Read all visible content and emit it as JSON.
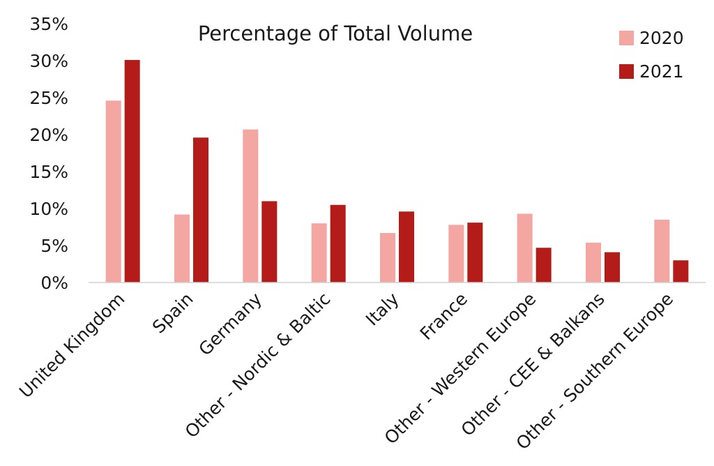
{
  "chart_data": {
    "type": "bar",
    "title": "Percentage of Total Volume",
    "xlabel": "",
    "ylabel": "",
    "ylim": [
      0,
      35
    ],
    "yticks": [
      "0%",
      "5%",
      "10%",
      "15%",
      "20%",
      "25%",
      "30%",
      "35%"
    ],
    "ytick_values": [
      0,
      5,
      10,
      15,
      20,
      25,
      30,
      35
    ],
    "grid": false,
    "legend_position": "top-right",
    "categories": [
      "United Kingdom",
      "Spain",
      "Germany",
      "Other - Nordic & Baltic",
      "Italy",
      "France",
      "Other - Western Europe",
      "Other - CEE & Balkans",
      "Other - Southern Europe"
    ],
    "series": [
      {
        "name": "2020",
        "color": "#f4a6a3",
        "values": [
          24.6,
          9.2,
          20.7,
          8.0,
          6.7,
          7.8,
          9.3,
          5.4,
          8.5
        ]
      },
      {
        "name": "2021",
        "color": "#b31c18",
        "values": [
          30.1,
          19.6,
          11.0,
          10.5,
          9.6,
          8.1,
          4.7,
          4.1,
          3.0
        ]
      }
    ]
  }
}
